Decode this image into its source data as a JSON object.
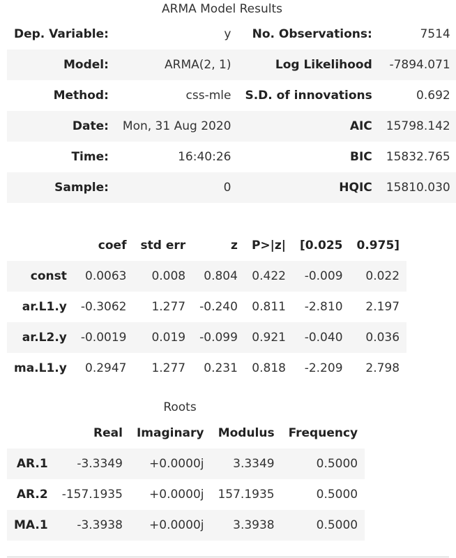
{
  "summary": {
    "caption": "ARMA Model Results",
    "rows": [
      [
        "Dep. Variable:",
        "y",
        "No. Observations:",
        "7514"
      ],
      [
        "Model:",
        "ARMA(2, 1)",
        "Log Likelihood",
        "-7894.071"
      ],
      [
        "Method:",
        "css-mle",
        "S.D. of innovations",
        "0.692"
      ],
      [
        "Date:",
        "Mon, 31 Aug 2020",
        "AIC",
        "15798.142"
      ],
      [
        "Time:",
        "16:40:26",
        "BIC",
        "15832.765"
      ],
      [
        "Sample:",
        "0",
        "HQIC",
        "15810.030"
      ]
    ]
  },
  "coef": {
    "headers": [
      "",
      "coef",
      "std err",
      "z",
      "P>|z|",
      "[0.025",
      "0.975]"
    ],
    "rows": [
      [
        "const",
        "0.0063",
        "0.008",
        "0.804",
        "0.422",
        "-0.009",
        "0.022"
      ],
      [
        "ar.L1.y",
        "-0.3062",
        "1.277",
        "-0.240",
        "0.811",
        "-2.810",
        "2.197"
      ],
      [
        "ar.L2.y",
        "-0.0019",
        "0.019",
        "-0.099",
        "0.921",
        "-0.040",
        "0.036"
      ],
      [
        "ma.L1.y",
        "0.2947",
        "1.277",
        "0.231",
        "0.818",
        "-2.209",
        "2.798"
      ]
    ]
  },
  "roots": {
    "caption": "Roots",
    "headers": [
      "",
      "Real",
      "Imaginary",
      "Modulus",
      "Frequency"
    ],
    "rows": [
      [
        "AR.1",
        "-3.3349",
        "+0.0000j",
        "3.3349",
        "0.5000"
      ],
      [
        "AR.2",
        "-157.1935",
        "+0.0000j",
        "157.1935",
        "0.5000"
      ],
      [
        "MA.1",
        "-3.3938",
        "+0.0000j",
        "3.3938",
        "0.5000"
      ]
    ]
  }
}
